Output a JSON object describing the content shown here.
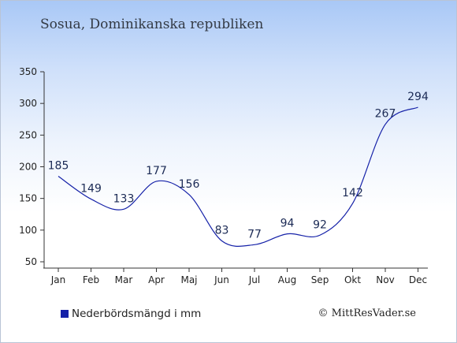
{
  "title": "Sosua, Dominikanska republiken",
  "legend": {
    "label": "Nederbördsmängd i mm",
    "color": "#1521a8"
  },
  "credit": "© MittResVader.se",
  "chart_data": {
    "type": "line",
    "title": "Sosua, Dominikanska republiken",
    "xlabel": "",
    "ylabel": "",
    "categories": [
      "Jan",
      "Feb",
      "Mar",
      "Apr",
      "Maj",
      "Jun",
      "Jul",
      "Aug",
      "Sep",
      "Okt",
      "Nov",
      "Dec"
    ],
    "series": [
      {
        "name": "Nederbördsmängd i mm",
        "values": [
          185,
          149,
          133,
          177,
          156,
          83,
          77,
          94,
          92,
          142,
          267,
          294
        ],
        "color": "#1521a8"
      }
    ],
    "ylim": [
      50,
      350
    ],
    "yticks": [
      50,
      100,
      150,
      200,
      250,
      300,
      350
    ],
    "grid": false,
    "legend_position": "bottom-left"
  }
}
